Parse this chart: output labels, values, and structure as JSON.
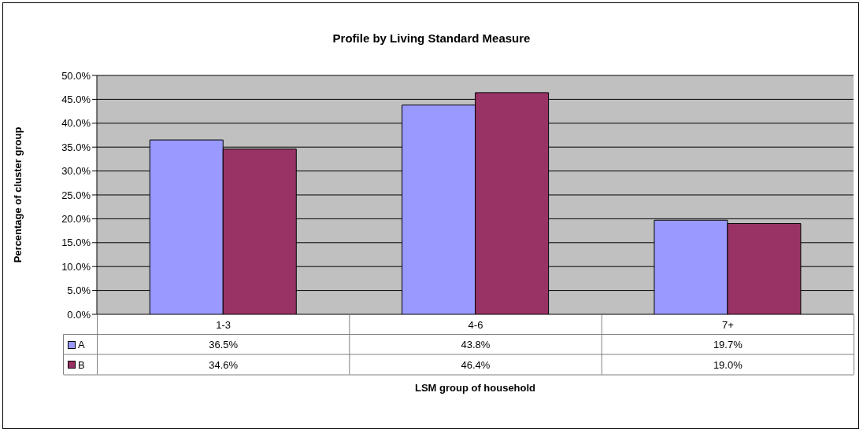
{
  "chart_data": {
    "type": "bar",
    "title": "Profile by Living Standard Measure",
    "xlabel": "LSM group of household",
    "ylabel": "Percentage of cluster group",
    "categories": [
      "1-3",
      "4-6",
      "7+"
    ],
    "series": [
      {
        "name": "A",
        "color": "#9999ff",
        "values": [
          36.5,
          43.8,
          19.7
        ],
        "value_labels": [
          "36.5%",
          "43.8%",
          "19.7%"
        ]
      },
      {
        "name": "B",
        "color": "#993366",
        "values": [
          34.6,
          46.4,
          19.0
        ],
        "value_labels": [
          "34.6%",
          "46.4%",
          "19.0%"
        ]
      }
    ],
    "ylim": [
      0,
      50
    ],
    "yticks": [
      {
        "value": 0,
        "label": "0.0%"
      },
      {
        "value": 5,
        "label": "5.0%"
      },
      {
        "value": 10,
        "label": "10.0%"
      },
      {
        "value": 15,
        "label": "15.0%"
      },
      {
        "value": 20,
        "label": "20.0%"
      },
      {
        "value": 25,
        "label": "25.0%"
      },
      {
        "value": 30,
        "label": "30.0%"
      },
      {
        "value": 35,
        "label": "35.0%"
      },
      {
        "value": 40,
        "label": "40.0%"
      },
      {
        "value": 45,
        "label": "45.0%"
      },
      {
        "value": 50,
        "label": "50.0%"
      }
    ],
    "grid": "y",
    "legend": "bottom"
  }
}
